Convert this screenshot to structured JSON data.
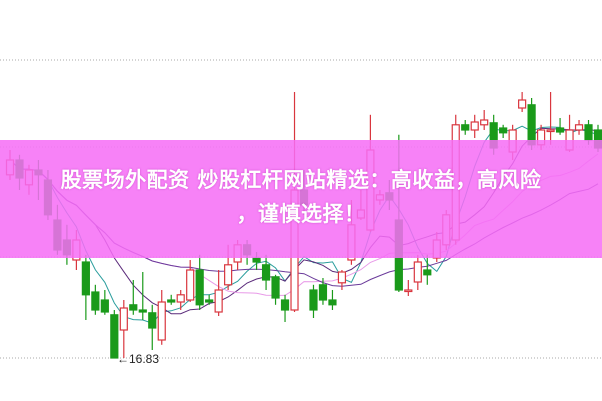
{
  "overlay": {
    "line1": "股票场外配资 炒股杠杆网站精选：高收益，高风险",
    "line2": "，谨慎选择！",
    "band_color": "#f66ef6"
  },
  "chart_data": {
    "type": "candlestick",
    "low_marker": "←16.83",
    "grid": "dotted horizontal",
    "colors": {
      "up": "#d9363e",
      "down": "#1a9a1a",
      "ma5": "#2a9d9d",
      "ma10": "#5a2a7a",
      "ma20": "#e89ae8",
      "ma30": "#6a3a9a"
    },
    "moving_averages": [
      "MA5",
      "MA10",
      "MA20",
      "MA30"
    ],
    "ohlc": [
      [
        21.41,
        21.78,
        22.03,
        21.28
      ],
      [
        21.78,
        21.33,
        21.91,
        21.03
      ],
      [
        21.16,
        21.53,
        21.66,
        20.91
      ],
      [
        21.53,
        21.41,
        21.78,
        20.78
      ],
      [
        21.28,
        20.41,
        21.53,
        20.28
      ],
      [
        20.28,
        19.53,
        20.66,
        19.41
      ],
      [
        19.78,
        19.41,
        20.16,
        19.16
      ],
      [
        19.28,
        19.78,
        20.03,
        19.03
      ],
      [
        19.23,
        18.41,
        19.41,
        17.78
      ],
      [
        18.48,
        18.03,
        18.66,
        17.91
      ],
      [
        18.28,
        17.98,
        18.53,
        17.91
      ],
      [
        17.91,
        16.83,
        18.03,
        16.83
      ],
      [
        17.53,
        18.08,
        18.28,
        16.83
      ],
      [
        18.16,
        18.03,
        18.78,
        17.91
      ],
      [
        18.03,
        17.98,
        18.98,
        17.78
      ],
      [
        17.96,
        17.58,
        18.16,
        17.03
      ],
      [
        17.28,
        18.23,
        18.53,
        17.16
      ],
      [
        18.28,
        18.23,
        18.41,
        18.16
      ],
      [
        18.23,
        18.41,
        18.53,
        18.03
      ],
      [
        18.28,
        19.03,
        19.28,
        18.23
      ],
      [
        19.03,
        18.16,
        19.41,
        18.03
      ],
      [
        18.28,
        18.23,
        18.41,
        18.16
      ],
      [
        17.98,
        18.53,
        19.03,
        17.88
      ],
      [
        18.66,
        19.16,
        19.66,
        18.53
      ],
      [
        19.23,
        19.66,
        19.78,
        19.03
      ],
      [
        19.66,
        19.41,
        19.78,
        19.16
      ],
      [
        19.33,
        19.23,
        19.48,
        19.03
      ],
      [
        19.16,
        18.78,
        19.41,
        18.53
      ],
      [
        18.86,
        18.33,
        18.91,
        18.16
      ],
      [
        18.28,
        18.03,
        18.41,
        17.73
      ],
      [
        18.03,
        21.03,
        23.48,
        17.98
      ],
      [
        21.03,
        20.66,
        21.53,
        20.41
      ],
      [
        18.53,
        18.03,
        18.66,
        17.83
      ],
      [
        18.66,
        18.28,
        18.83,
        18.16
      ],
      [
        18.28,
        18.16,
        18.53,
        18.03
      ],
      [
        18.71,
        18.98,
        19.03,
        18.53
      ],
      [
        19.28,
        20.16,
        20.78,
        19.16
      ],
      [
        20.33,
        20.53,
        21.03,
        20.28
      ],
      [
        20.03,
        22.03,
        22.91,
        19.98
      ],
      [
        20.78,
        20.91,
        21.03,
        20.66
      ],
      [
        20.96,
        20.78,
        21.28,
        20.53
      ],
      [
        20.28,
        18.53,
        22.41,
        18.48
      ],
      [
        18.53,
        18.53,
        18.78,
        18.38
      ],
      [
        18.73,
        19.23,
        19.41,
        18.53
      ],
      [
        19.03,
        18.91,
        19.41,
        18.66
      ],
      [
        19.33,
        19.78,
        19.98,
        19.23
      ],
      [
        19.66,
        20.41,
        20.53,
        19.53
      ],
      [
        19.78,
        22.66,
        22.91,
        19.66
      ],
      [
        22.66,
        22.53,
        22.78,
        22.41
      ],
      [
        22.53,
        22.73,
        22.91,
        22.33
      ],
      [
        22.66,
        22.78,
        23.03,
        22.53
      ],
      [
        22.71,
        22.08,
        22.91,
        21.91
      ],
      [
        22.58,
        22.46,
        22.66,
        22.33
      ],
      [
        21.98,
        22.53,
        22.66,
        21.78
      ],
      [
        23.08,
        23.28,
        23.48,
        22.98
      ],
      [
        23.16,
        22.16,
        23.33,
        22.03
      ],
      [
        22.16,
        22.53,
        22.66,
        22.03
      ],
      [
        22.53,
        22.53,
        23.48,
        22.16
      ],
      [
        22.58,
        22.48,
        22.83,
        22.41
      ],
      [
        22.03,
        22.53,
        22.91,
        21.98
      ],
      [
        22.53,
        22.66,
        22.78,
        22.41
      ],
      [
        22.66,
        22.28,
        22.78,
        22.16
      ],
      [
        22.53,
        22.08,
        22.66,
        21.98
      ]
    ],
    "ohlc_fields": [
      "open",
      "close",
      "high",
      "low"
    ]
  }
}
